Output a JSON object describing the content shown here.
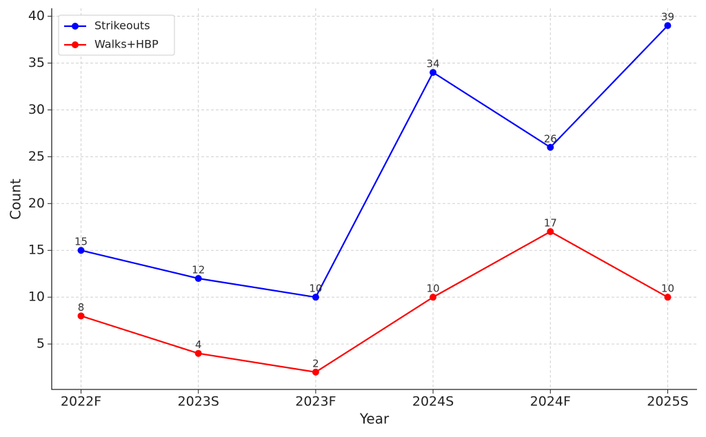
{
  "chart_data": {
    "type": "line",
    "x_label": "Year",
    "y_label": "Count",
    "categories": [
      "2022F",
      "2023S",
      "2023F",
      "2024S",
      "2024F",
      "2025S"
    ],
    "series": [
      {
        "name": "Strikeouts",
        "color": "#0000ff",
        "values": [
          15,
          12,
          10,
          34,
          26,
          39
        ]
      },
      {
        "name": "Walks+HBP",
        "color": "#ff0000",
        "values": [
          8,
          4,
          2,
          10,
          17,
          10
        ]
      }
    ],
    "ylim": [
      0.15,
      40.85
    ],
    "yticks": [
      5,
      10,
      15,
      20,
      25,
      30,
      35,
      40
    ],
    "grid": true,
    "legend": "upper-left",
    "value_labels_shown": true
  }
}
